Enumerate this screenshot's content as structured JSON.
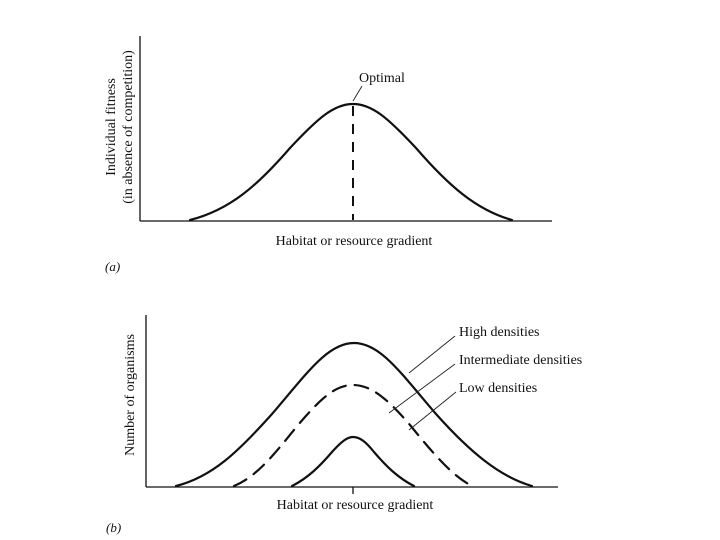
{
  "panel_a": {
    "id_label": "(a)",
    "y_label_line1": "Individual fitness",
    "y_label_line2": "(in absence of competition)",
    "x_label": "Habitat or resource gradient",
    "annotation": "Optimal"
  },
  "panel_b": {
    "id_label": "(b)",
    "y_label": "Number of organisms",
    "x_label": "Habitat or resource gradient",
    "legend": {
      "high": "High densities",
      "intermediate": "Intermediate densities",
      "low": "Low densities"
    }
  },
  "colors": {
    "ink": "#111111",
    "background": "#ffffff"
  }
}
